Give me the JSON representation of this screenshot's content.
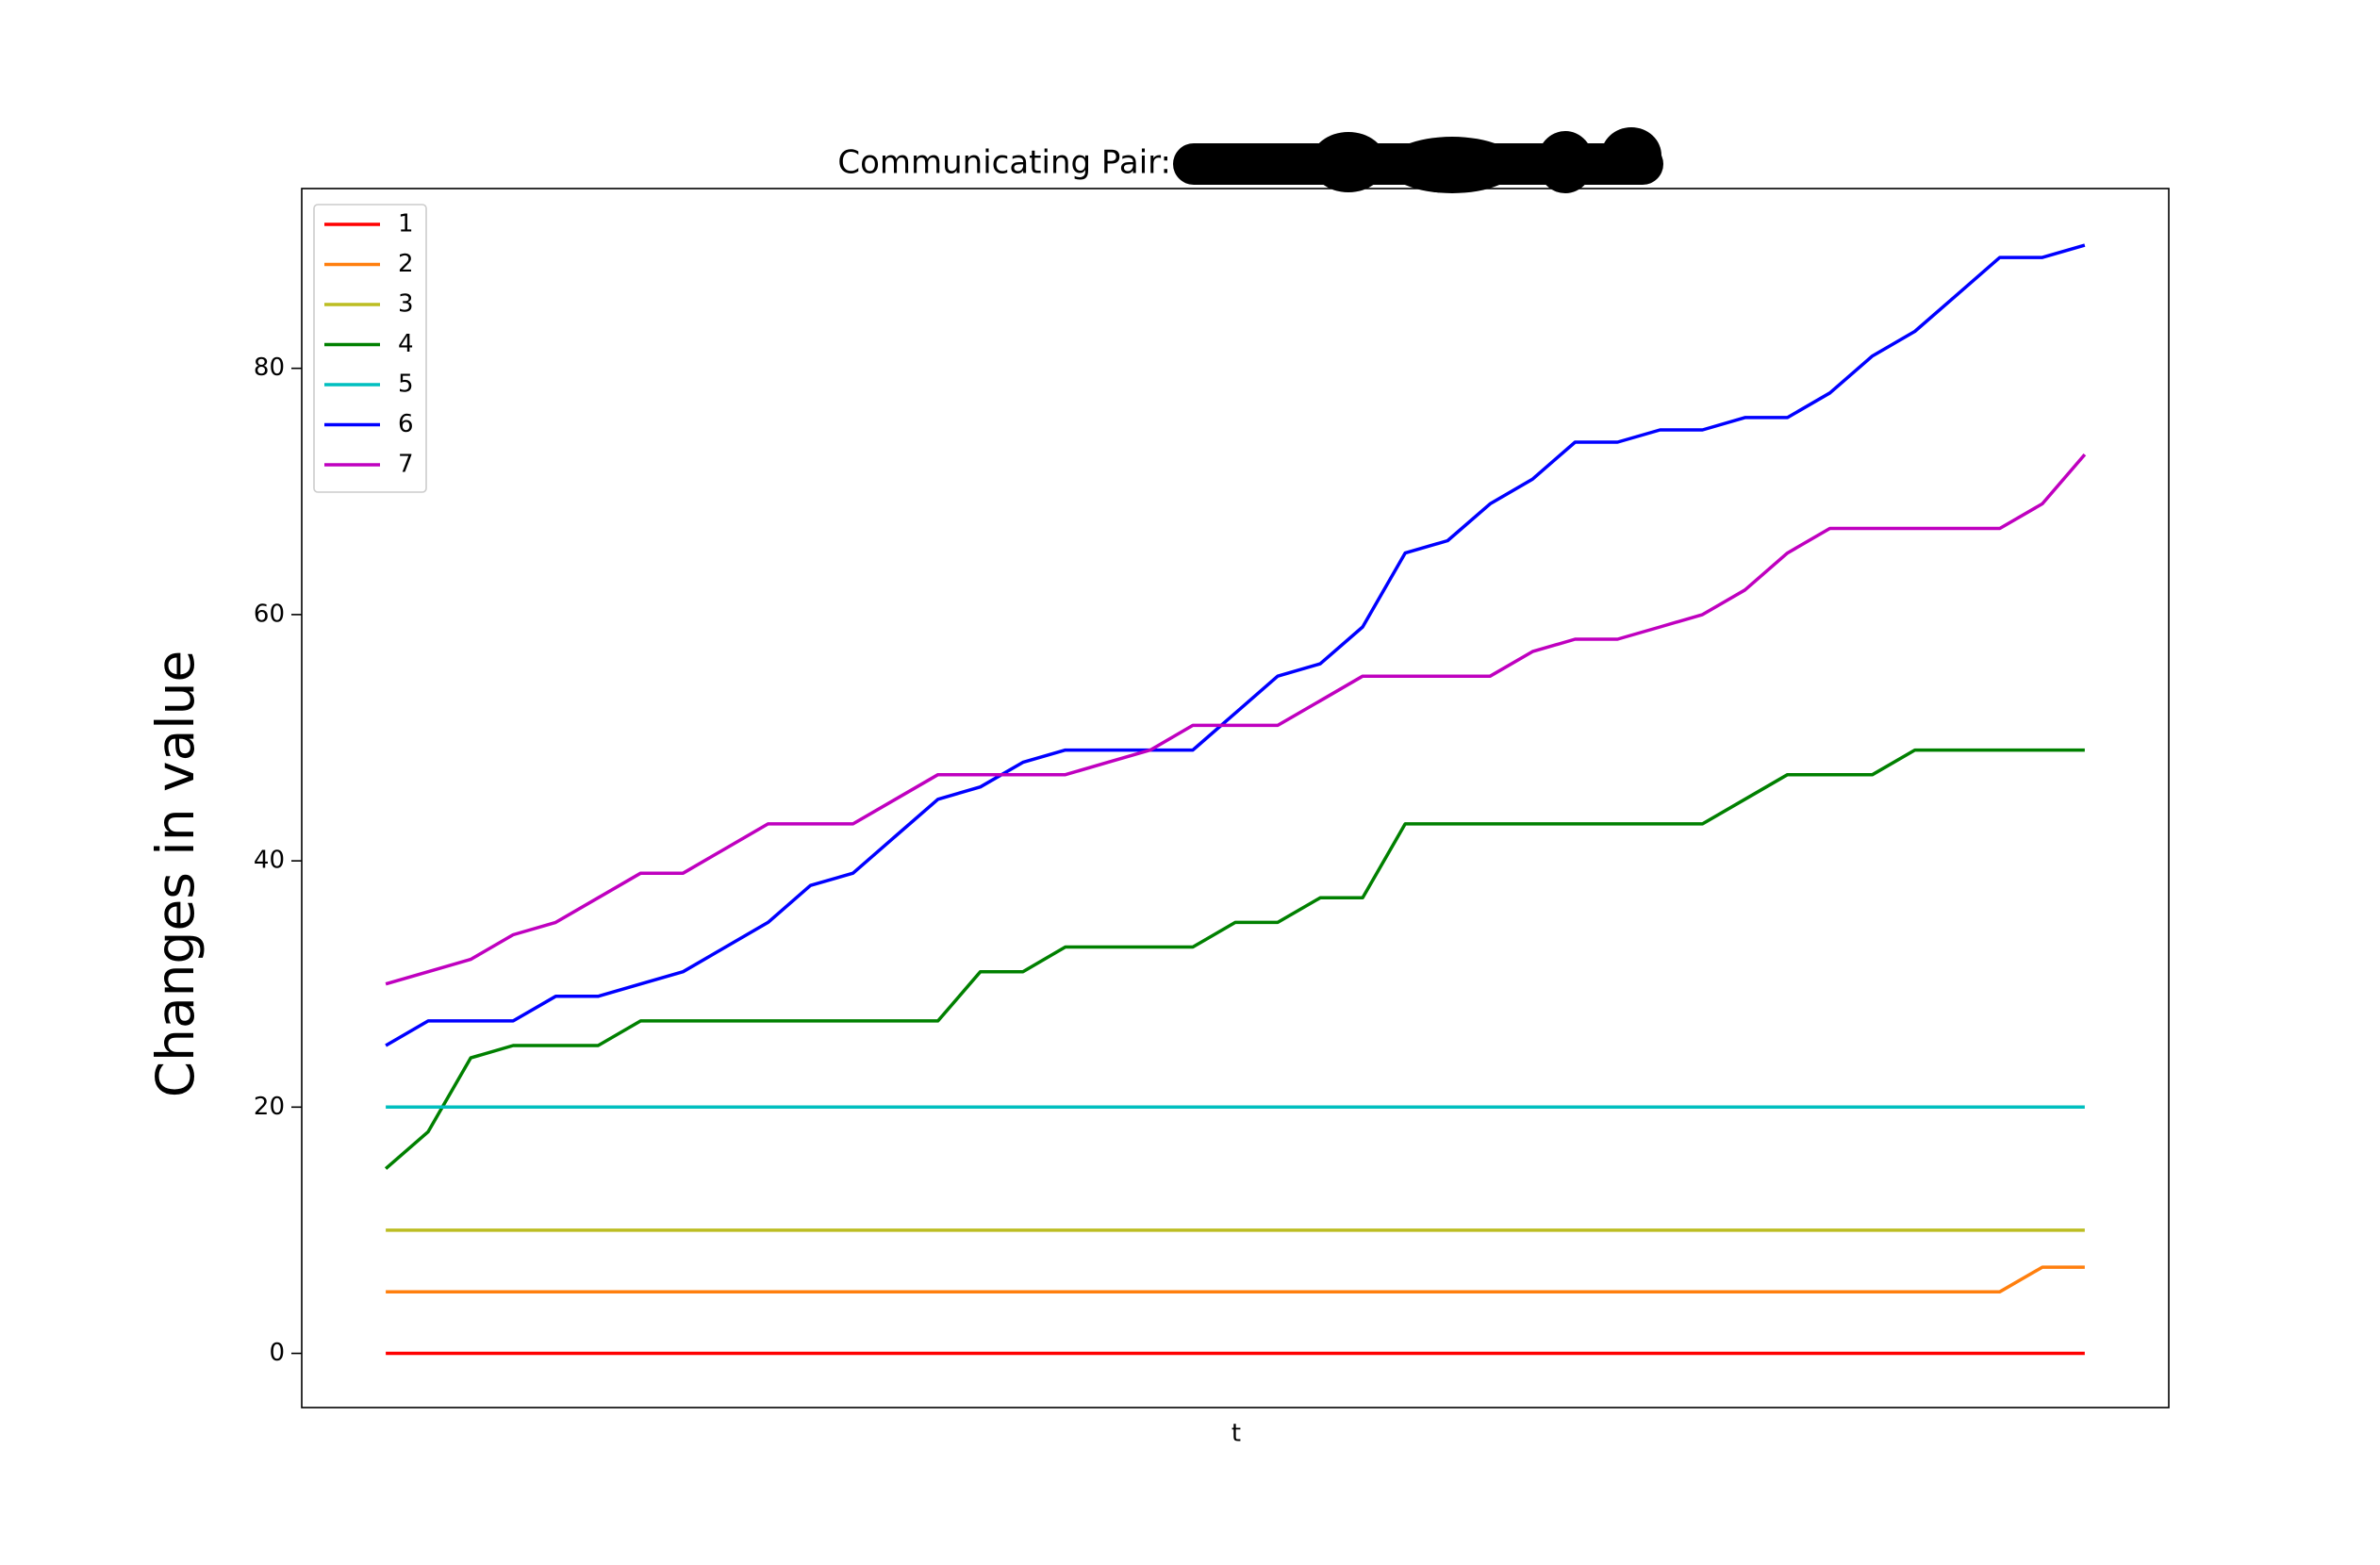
{
  "chart_data": {
    "type": "line",
    "title": "Communicating Pair:",
    "ylabel": "Changes in value",
    "xlabel": "t",
    "ylim": [
      -4.4,
      94.6
    ],
    "yticks": [
      0,
      20,
      40,
      60,
      80
    ],
    "legend": "upper left",
    "series": [
      {
        "name": "1",
        "color": "#ff0000",
        "values": [
          0,
          0,
          0,
          0,
          0,
          0,
          0,
          0,
          0,
          0,
          0,
          0,
          0,
          0,
          0,
          0,
          0,
          0,
          0,
          0,
          0,
          0,
          0,
          0,
          0,
          0,
          0,
          0,
          0,
          0,
          0,
          0,
          0,
          0,
          0,
          0,
          0,
          0,
          0,
          0,
          0
        ]
      },
      {
        "name": "2",
        "color": "#ff7f0e",
        "values": [
          5,
          5,
          5,
          5,
          5,
          5,
          5,
          5,
          5,
          5,
          5,
          5,
          5,
          5,
          5,
          5,
          5,
          5,
          5,
          5,
          5,
          5,
          5,
          5,
          5,
          5,
          5,
          5,
          5,
          5,
          5,
          5,
          5,
          5,
          5,
          5,
          5,
          5,
          5,
          7,
          7
        ]
      },
      {
        "name": "3",
        "color": "#bcbd22",
        "values": [
          10,
          10,
          10,
          10,
          10,
          10,
          10,
          10,
          10,
          10,
          10,
          10,
          10,
          10,
          10,
          10,
          10,
          10,
          10,
          10,
          10,
          10,
          10,
          10,
          10,
          10,
          10,
          10,
          10,
          10,
          10,
          10,
          10,
          10,
          10,
          10,
          10,
          10,
          10,
          10,
          10
        ]
      },
      {
        "name": "4",
        "color": "#008000",
        "values": [
          15,
          18,
          24,
          25,
          25,
          25,
          27,
          27,
          27,
          27,
          27,
          27,
          27,
          27,
          31,
          31,
          33,
          33,
          33,
          33,
          35,
          35,
          37,
          37,
          43,
          43,
          43,
          43,
          43,
          43,
          43,
          43,
          45,
          47,
          47,
          47,
          49,
          49,
          49,
          49,
          49
        ]
      },
      {
        "name": "5",
        "color": "#00bfbf",
        "values": [
          20,
          20,
          20,
          20,
          20,
          20,
          20,
          20,
          20,
          20,
          20,
          20,
          20,
          20,
          20,
          20,
          20,
          20,
          20,
          20,
          20,
          20,
          20,
          20,
          20,
          20,
          20,
          20,
          20,
          20,
          20,
          20,
          20,
          20,
          20,
          20,
          20,
          20,
          20,
          20,
          20
        ]
      },
      {
        "name": "6",
        "color": "#0000ff",
        "values": [
          25,
          27,
          27,
          27,
          29,
          29,
          30,
          31,
          33,
          35,
          38,
          39,
          42,
          45,
          46,
          48,
          49,
          49,
          49,
          49,
          52,
          55,
          56,
          59,
          65,
          66,
          69,
          71,
          74,
          74,
          75,
          75,
          76,
          76,
          78,
          81,
          83,
          86,
          89,
          89,
          90
        ]
      },
      {
        "name": "7",
        "color": "#bf00bf",
        "values": [
          30,
          31,
          32,
          34,
          35,
          37,
          39,
          39,
          41,
          43,
          43,
          43,
          45,
          47,
          47,
          47,
          47,
          48,
          49,
          51,
          51,
          51,
          53,
          55,
          55,
          55,
          55,
          57,
          58,
          58,
          59,
          60,
          62,
          65,
          67,
          67,
          67,
          67,
          67,
          69,
          73
        ]
      }
    ]
  }
}
